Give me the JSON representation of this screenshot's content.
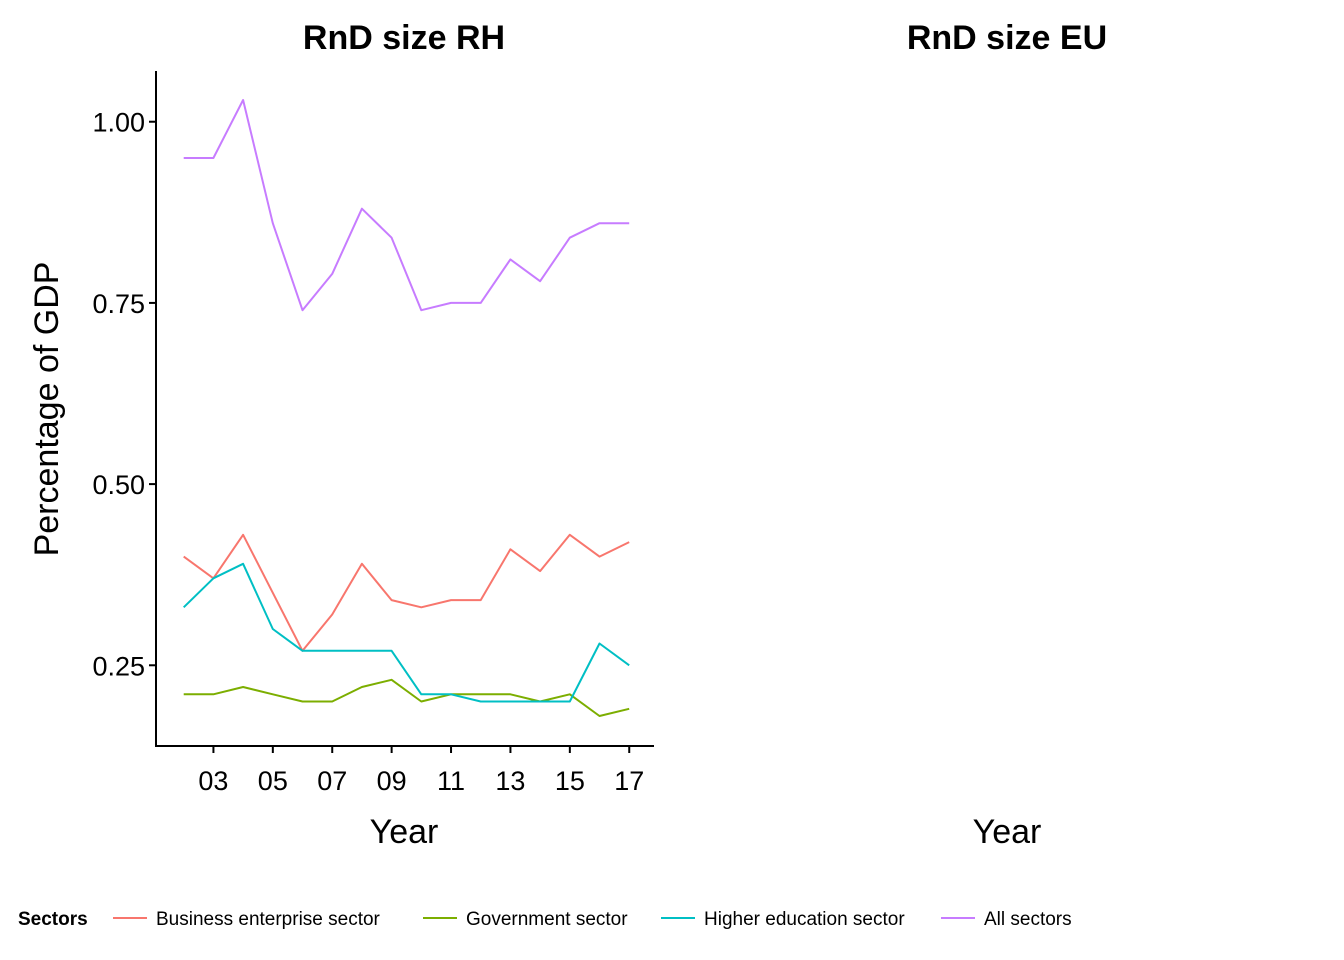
{
  "chart_data": [
    {
      "type": "line",
      "title": "RnD size RH",
      "xlabel": "Year",
      "ylabel": "Percentage of GDP",
      "x": [
        2,
        3,
        4,
        5,
        6,
        7,
        8,
        9,
        10,
        11,
        12,
        13,
        14,
        15,
        16,
        17
      ],
      "x_ticks": [
        "03",
        "05",
        "07",
        "09",
        "11",
        "13",
        "15",
        "17"
      ],
      "x_tick_values": [
        3,
        5,
        7,
        9,
        11,
        13,
        15,
        17
      ],
      "y_ticks": [
        "0.25",
        "0.50",
        "0.75",
        "1.00"
      ],
      "y_tick_values": [
        0.25,
        0.5,
        0.75,
        1.0
      ],
      "xlim": [
        1.1,
        17.8
      ],
      "ylim": [
        0.14,
        1.07
      ],
      "grid": false,
      "series": [
        {
          "name": "Business enterprise sector",
          "color": "#F8766D",
          "values": [
            0.4,
            0.37,
            0.43,
            0.35,
            0.27,
            0.32,
            0.39,
            0.34,
            0.33,
            0.34,
            0.34,
            0.41,
            0.38,
            0.43,
            0.4,
            0.42
          ]
        },
        {
          "name": "Government sector",
          "color": "#7CAE00",
          "values": [
            0.21,
            0.21,
            0.22,
            0.21,
            0.2,
            0.2,
            0.22,
            0.23,
            0.2,
            0.21,
            0.21,
            0.21,
            0.2,
            0.21,
            0.18,
            0.19
          ]
        },
        {
          "name": "Higher education sector",
          "color": "#00BFC4",
          "values": [
            0.33,
            0.37,
            0.39,
            0.3,
            0.27,
            0.27,
            0.27,
            0.27,
            0.21,
            0.21,
            0.2,
            0.2,
            0.2,
            0.2,
            0.28,
            0.25
          ]
        },
        {
          "name": "All sectors",
          "color": "#C77CFF",
          "values": [
            0.95,
            0.95,
            1.03,
            0.86,
            0.74,
            0.79,
            0.88,
            0.84,
            0.74,
            0.75,
            0.75,
            0.81,
            0.78,
            0.84,
            0.86,
            0.86
          ]
        }
      ]
    },
    {
      "type": "line",
      "title": "RnD size EU",
      "xlabel": "Year",
      "series": []
    }
  ],
  "legend": {
    "title": "Sectors",
    "position": "bottom",
    "items": [
      {
        "label": "Business enterprise sector",
        "color": "#F8766D"
      },
      {
        "label": "Government sector",
        "color": "#7CAE00"
      },
      {
        "label": "Higher education sector",
        "color": "#00BFC4"
      },
      {
        "label": "All sectors",
        "color": "#C77CFF"
      }
    ]
  }
}
